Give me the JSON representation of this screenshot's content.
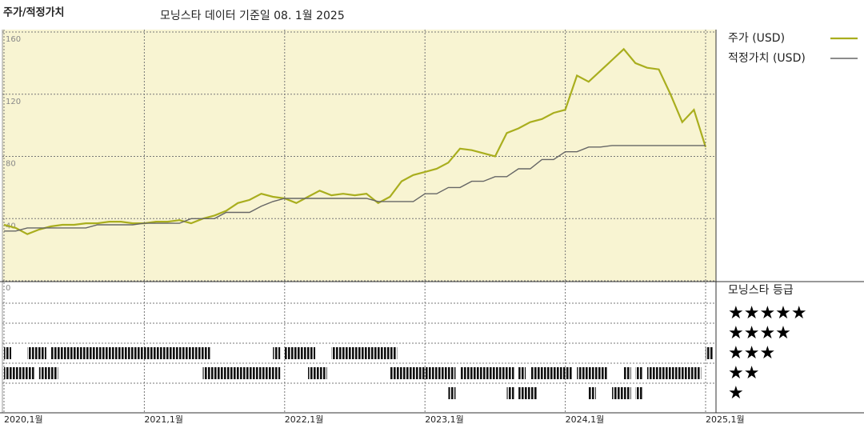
{
  "header": {
    "title": "주가/적정가치",
    "subtitle": "모닝스타 데이터 기준일 08. 1월 2025"
  },
  "chart_data": {
    "type": "line",
    "x": [
      "2020-01",
      "2020-02",
      "2020-03",
      "2020-04",
      "2020-05",
      "2020-06",
      "2020-07",
      "2020-08",
      "2020-09",
      "2020-10",
      "2020-11",
      "2020-12",
      "2021-01",
      "2021-02",
      "2021-03",
      "2021-04",
      "2021-05",
      "2021-06",
      "2021-07",
      "2021-08",
      "2021-09",
      "2021-10",
      "2021-11",
      "2021-12",
      "2022-01",
      "2022-02",
      "2022-03",
      "2022-04",
      "2022-05",
      "2022-06",
      "2022-07",
      "2022-08",
      "2022-09",
      "2022-10",
      "2022-11",
      "2022-12",
      "2023-01",
      "2023-02",
      "2023-03",
      "2023-04",
      "2023-05",
      "2023-06",
      "2023-07",
      "2023-08",
      "2023-09",
      "2023-10",
      "2023-11",
      "2023-12",
      "2024-01",
      "2024-02",
      "2024-03",
      "2024-04",
      "2024-05",
      "2024-06",
      "2024-07",
      "2024-08",
      "2024-09",
      "2024-10",
      "2024-11",
      "2024-12",
      "2025-01"
    ],
    "series": [
      {
        "name": "주가 (USD)",
        "color": "#a9ae1e",
        "values": [
          36,
          34,
          30,
          33,
          35,
          36,
          36,
          37,
          37,
          38,
          38,
          37,
          37,
          38,
          38,
          39,
          37,
          40,
          42,
          45,
          50,
          52,
          56,
          54,
          53,
          50,
          54,
          58,
          55,
          56,
          55,
          56,
          50,
          54,
          64,
          68,
          70,
          72,
          76,
          85,
          84,
          82,
          80,
          95,
          98,
          102,
          104,
          108,
          110,
          132,
          128,
          135,
          142,
          149,
          140,
          137,
          136,
          120,
          102,
          110,
          86
        ]
      },
      {
        "name": "적정가치 (USD)",
        "color": "#666666",
        "values": [
          32,
          32,
          34,
          34,
          34,
          34,
          34,
          34,
          36,
          36,
          36,
          36,
          37,
          37,
          37,
          37,
          40,
          40,
          40,
          44,
          44,
          44,
          48,
          51,
          53,
          53,
          53,
          53,
          53,
          53,
          53,
          53,
          51,
          51,
          51,
          51,
          56,
          56,
          60,
          60,
          64,
          64,
          67,
          67,
          72,
          72,
          78,
          78,
          83,
          83,
          86,
          86,
          87,
          87,
          87,
          87,
          87,
          87,
          87,
          87,
          87
        ]
      }
    ],
    "ylim": [
      0,
      160
    ],
    "yticks": [
      0,
      40,
      80,
      120,
      160
    ],
    "grid": true,
    "xticks": [
      {
        "value": "2020-01",
        "label": "2020,1월"
      },
      {
        "value": "2021-01",
        "label": "2021,1월"
      },
      {
        "value": "2022-01",
        "label": "2022,1월"
      },
      {
        "value": "2023-01",
        "label": "2023,1월"
      },
      {
        "value": "2024-01",
        "label": "2024,1월"
      },
      {
        "value": "2025-01",
        "label": "2025,1월"
      }
    ],
    "ratings": {
      "title": "모닝스타 등급",
      "rows": [
        {
          "stars": 5,
          "label": "★★★★★"
        },
        {
          "stars": 4,
          "label": "★★★★"
        },
        {
          "stars": 3,
          "label": "★★★"
        },
        {
          "stars": 2,
          "label": "★★"
        },
        {
          "stars": 1,
          "label": "★"
        }
      ],
      "segments": [
        {
          "stars": 3,
          "start": "2020-01",
          "end": "2020-01"
        },
        {
          "stars": 3,
          "start": "2020-03",
          "end": "2020-04"
        },
        {
          "stars": 3,
          "start": "2020-05",
          "end": "2021-06"
        },
        {
          "stars": 3,
          "start": "2021-12",
          "end": "2021-12"
        },
        {
          "stars": 3,
          "start": "2022-01",
          "end": "2022-03"
        },
        {
          "stars": 3,
          "start": "2022-05",
          "end": "2022-10"
        },
        {
          "stars": 3,
          "start": "2025-01",
          "end": "2025-01"
        },
        {
          "stars": 2,
          "start": "2020-01",
          "end": "2020-03"
        },
        {
          "stars": 2,
          "start": "2020-04",
          "end": "2020-05"
        },
        {
          "stars": 2,
          "start": "2021-06",
          "end": "2021-12"
        },
        {
          "stars": 2,
          "start": "2022-03",
          "end": "2022-04"
        },
        {
          "stars": 2,
          "start": "2022-10",
          "end": "2023-03"
        },
        {
          "stars": 2,
          "start": "2023-04",
          "end": "2023-08"
        },
        {
          "stars": 2,
          "start": "2023-09",
          "end": "2023-09"
        },
        {
          "stars": 2,
          "start": "2023-10",
          "end": "2024-01"
        },
        {
          "stars": 2,
          "start": "2024-02",
          "end": "2024-04"
        },
        {
          "stars": 2,
          "start": "2024-06",
          "end": "2024-06"
        },
        {
          "stars": 2,
          "start": "2024-07",
          "end": "2024-07"
        },
        {
          "stars": 2,
          "start": "2024-08",
          "end": "2024-12"
        },
        {
          "stars": 1,
          "start": "2023-03",
          "end": "2023-03"
        },
        {
          "stars": 1,
          "start": "2023-08",
          "end": "2023-08"
        },
        {
          "stars": 1,
          "start": "2023-09",
          "end": "2023-10"
        },
        {
          "stars": 1,
          "start": "2024-03",
          "end": "2024-03"
        },
        {
          "stars": 1,
          "start": "2024-05",
          "end": "2024-06"
        },
        {
          "stars": 1,
          "start": "2024-07",
          "end": "2024-07"
        }
      ]
    }
  }
}
